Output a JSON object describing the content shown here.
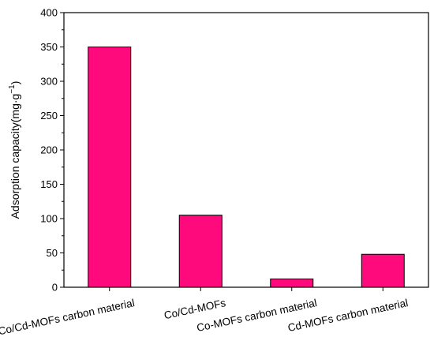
{
  "chart_data": {
    "type": "bar",
    "categories": [
      "Co/Cd-MOFs carbon material",
      "Co/Cd-MOFs",
      "Co-MOFs carbon material",
      "Cd-MOFs carbon material"
    ],
    "values": [
      350,
      105,
      12,
      48
    ],
    "title": "",
    "xlabel": "",
    "ylabel": "Adsorption capacity(mg·g",
    "ylabel_superscript": "−1",
    "ylabel_close": ")",
    "ylim": [
      0,
      400
    ],
    "yticks": [
      "0",
      "50",
      "100",
      "150",
      "200",
      "250",
      "300",
      "350",
      "400"
    ],
    "bar_color": "#ff0a7c",
    "bar_edge_color": "#000000",
    "grid": false
  }
}
